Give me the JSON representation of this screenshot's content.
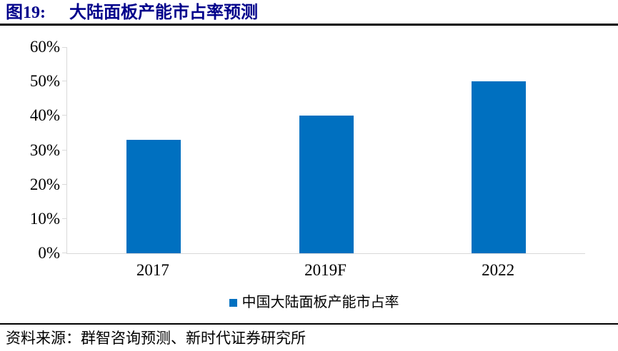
{
  "header": {
    "figure_label": "图19:",
    "title": "大陆面板产能市占率预测"
  },
  "chart_data": {
    "type": "bar",
    "title": "大陆面板产能市占率预测",
    "categories": [
      "2017",
      "2019F",
      "2022"
    ],
    "values": [
      33,
      40,
      50
    ],
    "series_name": "中国大陆面板产能市占率",
    "ylabel": "",
    "xlabel": "",
    "ylim": [
      0,
      60
    ],
    "yticks": [
      "0%",
      "10%",
      "20%",
      "30%",
      "40%",
      "50%",
      "60%"
    ],
    "ytick_values": [
      0,
      10,
      20,
      30,
      40,
      50,
      60
    ],
    "grid": false,
    "legend_position": "bottom",
    "bar_color": "#0070C0",
    "axis_color": "#D9D9D9"
  },
  "legend": {
    "swatch_icon": "blue-square",
    "label": "中国大陆面板产能市占率"
  },
  "footer": {
    "source": "资料来源：群智咨询预测、新时代证券研究所"
  },
  "colors": {
    "title_text": "#00008B",
    "rule": "#000000",
    "bar": "#0070C0",
    "axis": "#D9D9D9",
    "text": "#000000"
  }
}
